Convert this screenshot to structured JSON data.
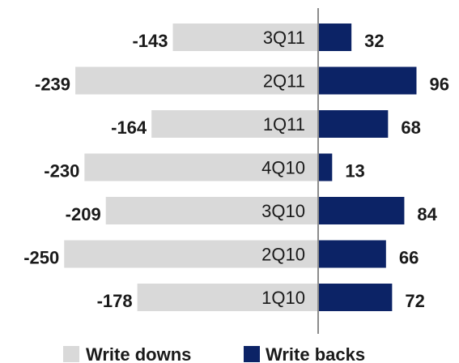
{
  "chart_data": {
    "type": "bar",
    "orientation": "horizontal-diverging",
    "categories": [
      "3Q11",
      "2Q11",
      "1Q11",
      "4Q10",
      "3Q10",
      "2Q10",
      "1Q10"
    ],
    "series": [
      {
        "name": "Write downs",
        "values": [
          -143,
          -239,
          -164,
          -230,
          -209,
          -250,
          -178
        ],
        "color": "#d9d9d9"
      },
      {
        "name": "Write backs",
        "values": [
          32,
          96,
          68,
          13,
          84,
          66,
          72
        ],
        "color": "#0c2366"
      }
    ],
    "title": "",
    "xlabel": "",
    "ylabel": "",
    "legend": "bottom",
    "grid": false
  },
  "colors": {
    "axis": "#8c8c8c",
    "text": "#1a1a1a"
  }
}
